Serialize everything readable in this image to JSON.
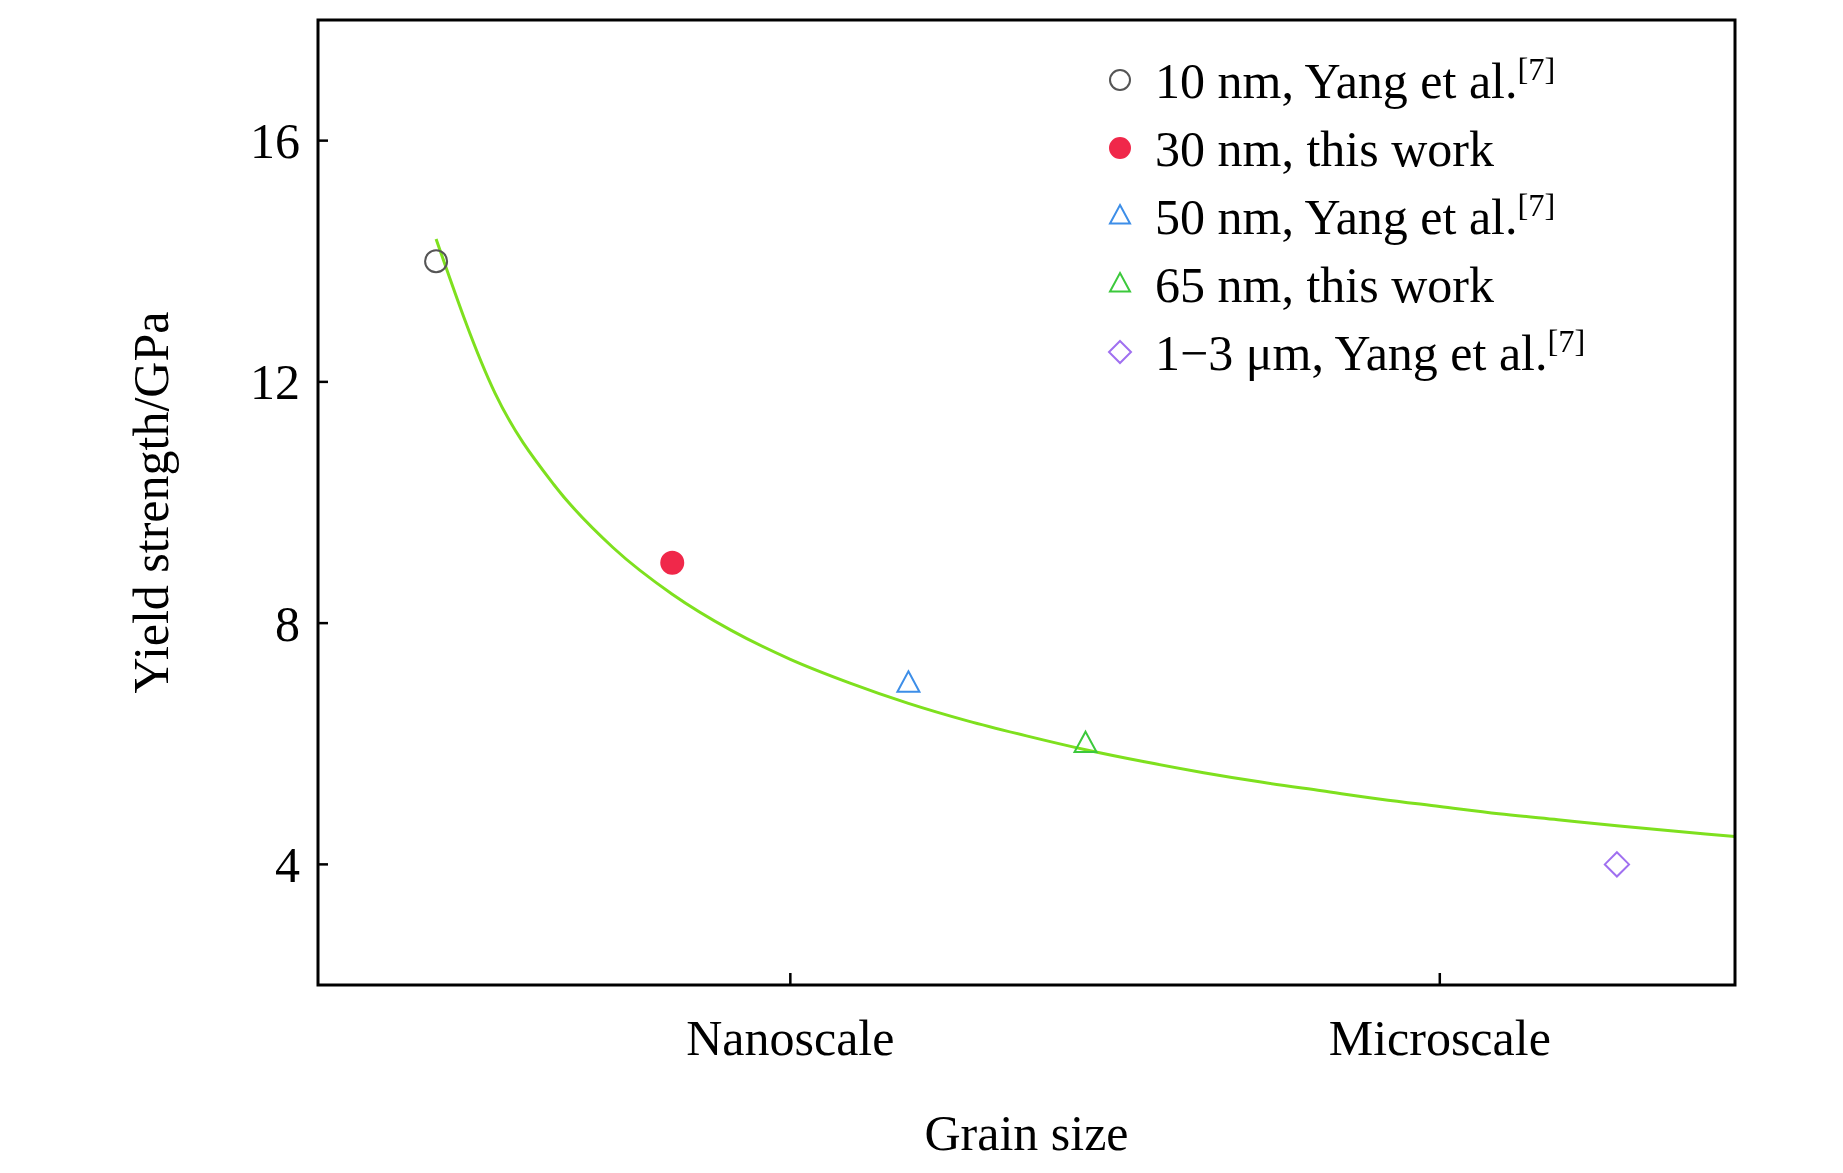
{
  "chart_data": {
    "type": "scatter",
    "xlabel": "Grain size",
    "ylabel": "Yield strength/GPa",
    "categories": [
      null,
      null,
      null,
      null,
      null,
      null,
      null,
      null,
      "Nanoscale",
      null,
      null,
      null,
      null,
      null,
      null,
      null,
      null,
      null,
      null,
      "Microscale",
      null,
      null,
      null,
      null,
      null
    ],
    "ylim": [
      2,
      18
    ],
    "yticks": [
      4,
      8,
      12,
      16
    ],
    "legend": "top right",
    "series": [
      {
        "name": "10 nm, Yang et al.$^{[7]}$",
        "color": "#555555",
        "marker": "circle",
        "values": [
          null,
          null,
          14,
          null,
          null,
          null,
          null,
          null,
          null,
          null,
          null,
          null,
          null,
          null,
          null,
          null,
          null,
          null,
          null,
          null,
          null,
          null,
          null,
          null,
          null
        ]
      },
      {
        "name": "30 nm, this work",
        "color": "#f0284a",
        "marker": "filled-circle",
        "values": [
          null,
          null,
          null,
          null,
          null,
          null,
          9,
          null,
          null,
          null,
          null,
          null,
          null,
          null,
          null,
          null,
          null,
          null,
          null,
          null,
          null,
          null,
          null,
          null,
          null
        ]
      },
      {
        "name": "50 nm, Yang et al.$^{[7]}$",
        "color": "#3d8ee8",
        "marker": "triangle",
        "values": [
          null,
          null,
          null,
          null,
          null,
          null,
          null,
          null,
          null,
          null,
          7,
          null,
          null,
          null,
          null,
          null,
          null,
          null,
          null,
          null,
          null,
          null,
          null,
          null,
          null
        ]
      },
      {
        "name": "65 nm, this work",
        "color": "#3cc93c",
        "marker": "triangle",
        "values": [
          null,
          null,
          null,
          null,
          null,
          null,
          null,
          null,
          null,
          null,
          null,
          null,
          null,
          6,
          null,
          null,
          null,
          null,
          null,
          null,
          null,
          null,
          null,
          null,
          null
        ]
      },
      {
        "name": "1−3 μm, Yang et al.$^{[7]}$",
        "color": "#a070f0",
        "marker": "diamond",
        "values": [
          null,
          null,
          null,
          null,
          null,
          null,
          null,
          null,
          null,
          null,
          null,
          null,
          null,
          null,
          null,
          null,
          null,
          null,
          null,
          null,
          null,
          null,
          4,
          null,
          null
        ]
      },
      {
        "type": "line",
        "color": "#7ee01e",
        "marker": "none",
        "line_style": "solid",
        "values": [
          null,
          null,
          14.37,
          11.81,
          10.29,
          9.25,
          8.48,
          7.88,
          7.4,
          7.01,
          6.67,
          6.38,
          6.13,
          5.9,
          5.7,
          5.52,
          5.36,
          5.22,
          5.08,
          4.96,
          4.84,
          4.74,
          4.64,
          4.55,
          4.46
        ]
      }
    ]
  }
}
